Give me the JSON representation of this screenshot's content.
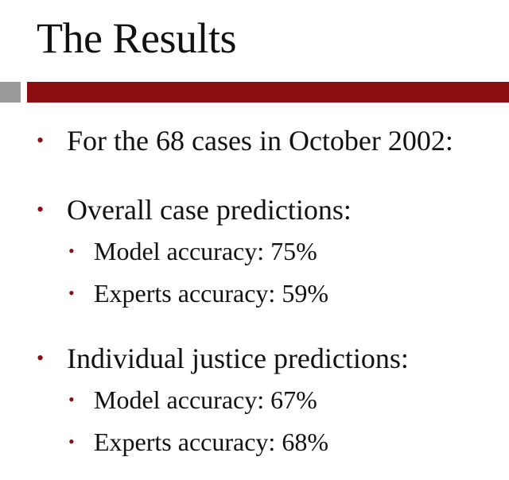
{
  "slide": {
    "title": "The Results",
    "accent_colors": {
      "bar": "#8b0d10",
      "square": "#9a9a9a",
      "bullet": "#8b0d10"
    },
    "bullet_glyph": "•",
    "bullets": [
      {
        "level": 1,
        "text": "For the 68 cases in October 2002:"
      },
      {
        "level": 1,
        "text": "Overall case predictions:"
      },
      {
        "level": 2,
        "text": "Model accuracy: 75%"
      },
      {
        "level": 2,
        "text": "Experts accuracy: 59%"
      },
      {
        "level": 1,
        "text": "Individual justice predictions:"
      },
      {
        "level": 2,
        "text": "Model accuracy: 67%"
      },
      {
        "level": 2,
        "text": "Experts accuracy: 68%"
      }
    ]
  }
}
